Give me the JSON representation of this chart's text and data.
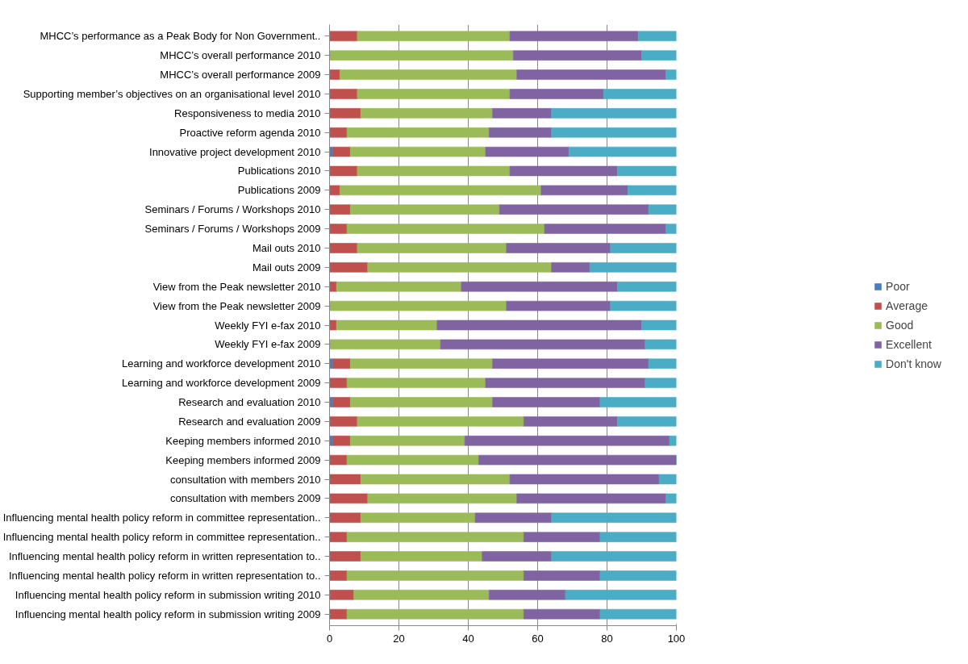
{
  "chart_data": {
    "type": "bar",
    "orientation": "horizontal",
    "stacked": true,
    "categories": [
      "MHCC’s performance as a Peak Body for Non Government..",
      "MHCC’s overall performance 2010",
      "MHCC’s overall performance 2009",
      "Supporting member’s objectives on an organisational level 2010",
      "Responsiveness to media 2010",
      "Proactive reform agenda 2010",
      "Innovative project development 2010",
      "Publications 2010",
      "Publications 2009",
      "Seminars / Forums / Workshops 2010",
      "Seminars / Forums / Workshops 2009",
      "Mail outs 2010",
      "Mail outs 2009",
      "View from the Peak newsletter 2010",
      "View from the Peak newsletter 2009",
      "Weekly FYI e-fax 2010",
      "Weekly FYI e-fax 2009",
      "Learning and workforce development 2010",
      "Learning and workforce development 2009",
      "Research and evaluation 2010",
      "Research and evaluation 2009",
      "Keeping members informed 2010",
      "Keeping members informed 2009",
      "consultation with members 2010",
      "consultation with members 2009",
      "Influencing mental health policy reform in committee representation..",
      "Influencing mental health policy reform in committee representation..",
      "Influencing mental health policy reform in written representation to..",
      "Influencing mental health policy reform in written representation to..",
      "Influencing mental health policy reform in submission writing 2010",
      "Influencing mental health policy reform in submission writing 2009"
    ],
    "series": [
      {
        "name": "Poor",
        "color": "#4a7ebb",
        "values": [
          0,
          0,
          0,
          0,
          0,
          0,
          1,
          0,
          0,
          0,
          0,
          0,
          0,
          0,
          0,
          0,
          0,
          1,
          0,
          1,
          0,
          1,
          0,
          0,
          0,
          0,
          0,
          0,
          0,
          0,
          0
        ]
      },
      {
        "name": "Average",
        "color": "#c0504d",
        "values": [
          8,
          0,
          3,
          8,
          9,
          5,
          5,
          8,
          3,
          6,
          5,
          8,
          11,
          2,
          0,
          2,
          0,
          5,
          5,
          5,
          8,
          5,
          5,
          9,
          11,
          9,
          5,
          9,
          5,
          7,
          5
        ]
      },
      {
        "name": "Good",
        "color": "#9bbb59",
        "values": [
          44,
          53,
          51,
          44,
          38,
          41,
          39,
          44,
          58,
          43,
          57,
          43,
          53,
          36,
          51,
          29,
          32,
          41,
          40,
          41,
          48,
          33,
          38,
          43,
          43,
          33,
          51,
          35,
          51,
          39,
          51
        ]
      },
      {
        "name": "Excellent",
        "color": "#8064a2",
        "values": [
          37,
          37,
          43,
          27,
          17,
          18,
          24,
          31,
          25,
          43,
          35,
          30,
          11,
          45,
          30,
          59,
          59,
          45,
          46,
          31,
          27,
          59,
          57,
          43,
          43,
          22,
          22,
          20,
          22,
          22,
          22
        ]
      },
      {
        "name": "Don't know",
        "color": "#4bacc6",
        "values": [
          11,
          10,
          3,
          21,
          36,
          36,
          31,
          17,
          14,
          8,
          3,
          19,
          25,
          17,
          19,
          10,
          9,
          8,
          9,
          22,
          17,
          2,
          0,
          5,
          3,
          36,
          22,
          36,
          22,
          32,
          22
        ]
      }
    ],
    "xlim": [
      0,
      100
    ],
    "xticks": [
      0,
      20,
      40,
      60,
      80,
      100
    ],
    "grid": "x",
    "legend": "right"
  }
}
